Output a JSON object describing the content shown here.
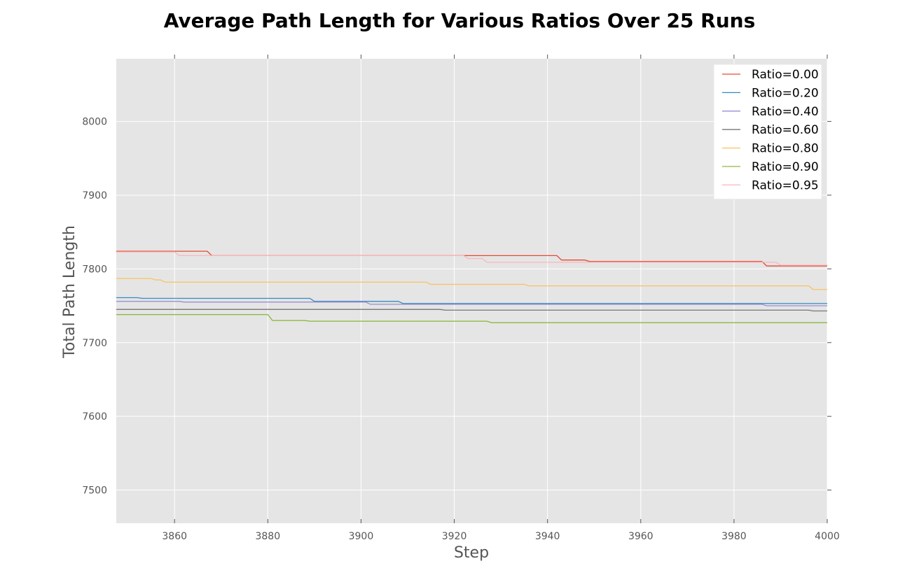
{
  "chart_data": {
    "type": "line",
    "title": "Average Path Length for Various Ratios Over 25 Runs",
    "xlabel": "Step",
    "ylabel": "Total Path Length",
    "xlim": [
      3847.5,
      4000
    ],
    "ylim": [
      7455,
      8085
    ],
    "xticks": [
      3860,
      3880,
      3900,
      3920,
      3940,
      3960,
      3980,
      4000
    ],
    "yticks": [
      7500,
      7600,
      7700,
      7800,
      7900,
      8000
    ],
    "grid": true,
    "legend_position": "top-right",
    "series": [
      {
        "name": "Ratio=0.00",
        "color": "#E24A33",
        "x": [
          3847.5,
          3867,
          3868,
          3922,
          3942,
          3943,
          3948,
          3949,
          3986,
          3987,
          4000
        ],
        "y": [
          7824,
          7824,
          7818,
          7818,
          7818,
          7812,
          7812,
          7810,
          7810,
          7804,
          7804
        ]
      },
      {
        "name": "Ratio=0.20",
        "color": "#348ABD",
        "x": [
          3847.5,
          3852,
          3853,
          3889,
          3890,
          3908,
          3909,
          4000
        ],
        "y": [
          7761,
          7761,
          7760,
          7760,
          7756,
          7756,
          7753,
          7753
        ]
      },
      {
        "name": "Ratio=0.40",
        "color": "#988ED5",
        "x": [
          3847.5,
          3861,
          3862,
          3901,
          3902,
          3986,
          3987,
          4000
        ],
        "y": [
          7756,
          7756,
          7755,
          7755,
          7752,
          7752,
          7750,
          7750
        ]
      },
      {
        "name": "Ratio=0.60",
        "color": "#777777",
        "x": [
          3847.5,
          3917,
          3918,
          3996,
          3997,
          4000
        ],
        "y": [
          7745,
          7745,
          7744,
          7744,
          7743,
          7743
        ]
      },
      {
        "name": "Ratio=0.80",
        "color": "#FBC15E",
        "x": [
          3847.5,
          3855,
          3856,
          3857,
          3858,
          3914,
          3915,
          3935,
          3936,
          3996,
          3997,
          4000
        ],
        "y": [
          7787,
          7787,
          7785,
          7785,
          7782,
          7782,
          7779,
          7779,
          7777,
          7777,
          7772,
          7772
        ]
      },
      {
        "name": "Ratio=0.90",
        "color": "#8EBA42",
        "x": [
          3847.5,
          3880,
          3881,
          3888,
          3889,
          3927,
          3928,
          4000
        ],
        "y": [
          7738,
          7738,
          7730,
          7730,
          7729,
          7729,
          7727,
          7727
        ]
      },
      {
        "name": "Ratio=0.95",
        "color": "#FFB5B8",
        "x": [
          3847.5,
          3860,
          3861,
          3922,
          3923,
          3926,
          3927,
          3989,
          3990,
          4000
        ],
        "y": [
          7823,
          7823,
          7818,
          7818,
          7814,
          7814,
          7809,
          7809,
          7805,
          7805
        ]
      }
    ]
  }
}
